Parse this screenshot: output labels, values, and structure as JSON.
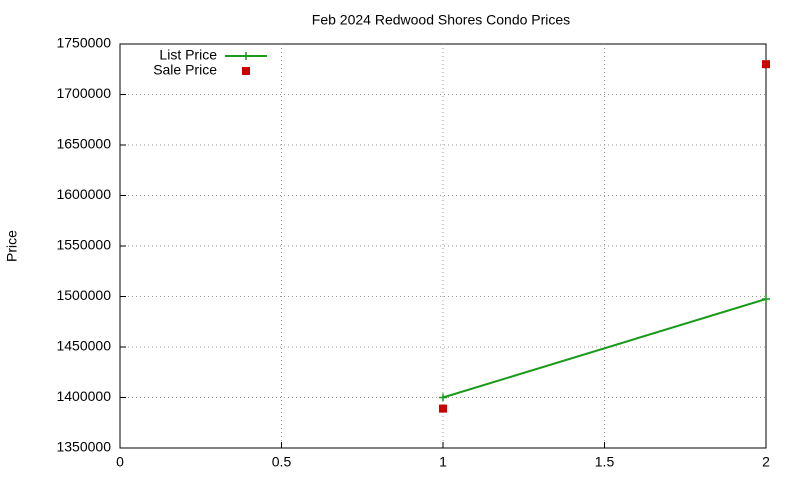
{
  "chart_data": {
    "type": "line",
    "title": "Feb 2024 Redwood Shores Condo Prices",
    "y_label": "Price",
    "x": [
      1,
      2
    ],
    "series": [
      {
        "name": "List Price",
        "color": "#1a9a1a",
        "mode": "lines+points",
        "values": [
          1400000,
          1497500
        ]
      },
      {
        "name": "Sale Price",
        "color": "#cc0000",
        "mode": "points",
        "values": [
          1389000,
          1730000
        ]
      }
    ],
    "xlim": [
      0,
      2
    ],
    "xticks": [
      0,
      0.5,
      1,
      1.5,
      2
    ],
    "ylim": [
      1350000,
      1750000
    ],
    "yticks": [
      1350000,
      1400000,
      1450000,
      1500000,
      1550000,
      1600000,
      1650000,
      1700000,
      1750000
    ],
    "grid": true,
    "legend": "top-left"
  }
}
